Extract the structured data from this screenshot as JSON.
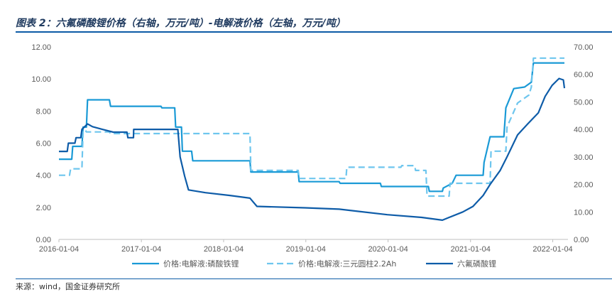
{
  "title": "图表 2：六氟磷酸锂价格（右轴，万元/吨）-电解液价格（左轴，万元/吨）",
  "source": "来源：wind，国金证券研究所",
  "chart_data": {
    "type": "line",
    "x_ticks": [
      "2016-01-04",
      "2017-01-04",
      "2018-01-04",
      "2019-01-04",
      "2020-01-04",
      "2021-01-04",
      "2022-01-04"
    ],
    "y_left": {
      "min": 0,
      "max": 12,
      "ticks": [
        "0.00",
        "2.00",
        "4.00",
        "6.00",
        "8.00",
        "10.00",
        "12.00"
      ]
    },
    "y_right": {
      "min": 0,
      "max": 70,
      "ticks": [
        "0.00",
        "10.00",
        "20.00",
        "30.00",
        "40.00",
        "50.00",
        "60.00",
        "70.00"
      ]
    },
    "grid": false,
    "legend_position": "bottom",
    "series": [
      {
        "name": "价格:电解液:磷酸铁锂",
        "axis": "left",
        "color": "#1a9ad6",
        "dash": "solid",
        "points": [
          [
            "2016-01-04",
            5.0
          ],
          [
            "2016-03-01",
            5.0
          ],
          [
            "2016-03-05",
            5.8
          ],
          [
            "2016-04-15",
            5.8
          ],
          [
            "2016-04-20",
            7.0
          ],
          [
            "2016-05-05",
            7.0
          ],
          [
            "2016-05-10",
            8.7
          ],
          [
            "2016-08-15",
            8.7
          ],
          [
            "2016-08-20",
            8.3
          ],
          [
            "2017-04-01",
            8.3
          ],
          [
            "2017-04-05",
            8.2
          ],
          [
            "2017-06-01",
            8.2
          ],
          [
            "2017-06-05",
            7.0
          ],
          [
            "2017-07-01",
            7.0
          ],
          [
            "2017-07-05",
            5.5
          ],
          [
            "2017-08-15",
            5.5
          ],
          [
            "2017-08-20",
            4.9
          ],
          [
            "2018-05-01",
            4.9
          ],
          [
            "2018-05-05",
            4.2
          ],
          [
            "2018-12-01",
            4.2
          ],
          [
            "2018-12-05",
            3.6
          ],
          [
            "2019-06-01",
            3.6
          ],
          [
            "2019-06-05",
            3.5
          ],
          [
            "2019-12-01",
            3.5
          ],
          [
            "2019-12-05",
            3.3
          ],
          [
            "2020-07-01",
            3.3
          ],
          [
            "2020-07-05",
            3.0
          ],
          [
            "2020-09-01",
            3.0
          ],
          [
            "2020-09-05",
            3.2
          ],
          [
            "2020-10-15",
            3.5
          ],
          [
            "2020-11-01",
            4.0
          ],
          [
            "2021-03-01",
            4.0
          ],
          [
            "2021-03-05",
            4.8
          ],
          [
            "2021-04-01",
            6.4
          ],
          [
            "2021-06-01",
            6.4
          ],
          [
            "2021-06-10",
            8.2
          ],
          [
            "2021-07-15",
            9.4
          ],
          [
            "2021-09-01",
            9.5
          ],
          [
            "2021-10-01",
            9.8
          ],
          [
            "2021-10-10",
            11.0
          ],
          [
            "2022-02-25",
            11.0
          ]
        ]
      },
      {
        "name": "价格:电解液:三元圆柱2.2Ah",
        "axis": "left",
        "color": "#6ec6ee",
        "dash": "dashed",
        "points": [
          [
            "2016-01-04",
            4.0
          ],
          [
            "2016-02-20",
            4.0
          ],
          [
            "2016-02-25",
            4.4
          ],
          [
            "2016-04-15",
            4.4
          ],
          [
            "2016-04-20",
            6.8
          ],
          [
            "2016-05-01",
            6.8
          ],
          [
            "2016-05-05",
            6.7
          ],
          [
            "2016-08-15",
            6.7
          ],
          [
            "2016-08-20",
            6.6
          ],
          [
            "2018-05-01",
            6.6
          ],
          [
            "2018-05-05",
            4.3
          ],
          [
            "2018-12-01",
            4.3
          ],
          [
            "2018-12-05",
            3.8
          ],
          [
            "2019-07-01",
            3.8
          ],
          [
            "2019-07-05",
            4.5
          ],
          [
            "2020-03-01",
            4.5
          ],
          [
            "2020-03-05",
            4.6
          ],
          [
            "2020-05-01",
            4.6
          ],
          [
            "2020-05-05",
            4.3
          ],
          [
            "2020-06-20",
            4.3
          ],
          [
            "2020-06-25",
            2.7
          ],
          [
            "2020-10-01",
            2.7
          ],
          [
            "2020-10-05",
            3.5
          ],
          [
            "2021-04-01",
            3.5
          ],
          [
            "2021-04-05",
            5.5
          ],
          [
            "2021-06-10",
            5.5
          ],
          [
            "2021-06-15",
            7.0
          ],
          [
            "2021-08-01",
            8.5
          ],
          [
            "2021-09-20",
            9.0
          ],
          [
            "2021-10-01",
            9.5
          ],
          [
            "2021-10-10",
            11.3
          ],
          [
            "2022-02-25",
            11.3
          ]
        ]
      },
      {
        "name": "六氟磷酸锂",
        "axis": "right",
        "color": "#0e5ca8",
        "dash": "solid",
        "points": [
          [
            "2016-01-04",
            32.0
          ],
          [
            "2016-02-10",
            32.0
          ],
          [
            "2016-02-15",
            35.0
          ],
          [
            "2016-03-15",
            35.0
          ],
          [
            "2016-03-20",
            37.0
          ],
          [
            "2016-04-10",
            37.0
          ],
          [
            "2016-04-15",
            40.0
          ],
          [
            "2016-05-10",
            42.0
          ],
          [
            "2016-06-01",
            41.0
          ],
          [
            "2016-07-15",
            40.0
          ],
          [
            "2016-09-01",
            39.0
          ],
          [
            "2016-11-01",
            39.0
          ],
          [
            "2016-11-05",
            37.0
          ],
          [
            "2016-11-30",
            37.0
          ],
          [
            "2016-12-01",
            40.0
          ],
          [
            "2017-06-15",
            40.0
          ],
          [
            "2017-06-25",
            30.0
          ],
          [
            "2017-07-15",
            23.0
          ],
          [
            "2017-08-01",
            18.0
          ],
          [
            "2017-10-15",
            17.0
          ],
          [
            "2018-02-01",
            16.0
          ],
          [
            "2018-05-01",
            15.0
          ],
          [
            "2018-06-01",
            12.0
          ],
          [
            "2019-01-01",
            11.5
          ],
          [
            "2019-06-01",
            11.0
          ],
          [
            "2020-01-01",
            9.0
          ],
          [
            "2020-06-01",
            8.0
          ],
          [
            "2020-09-01",
            7.0
          ],
          [
            "2020-10-01",
            8.0
          ],
          [
            "2020-12-01",
            10.0
          ],
          [
            "2021-01-15",
            12.0
          ],
          [
            "2021-03-01",
            16.0
          ],
          [
            "2021-04-01",
            20.0
          ],
          [
            "2021-05-15",
            25.0
          ],
          [
            "2021-06-15",
            30.0
          ],
          [
            "2021-08-01",
            38.0
          ],
          [
            "2021-09-15",
            42.0
          ],
          [
            "2021-11-01",
            46.0
          ],
          [
            "2021-12-01",
            52.0
          ],
          [
            "2022-01-01",
            56.0
          ],
          [
            "2022-02-01",
            58.5
          ],
          [
            "2022-02-20",
            58.0
          ],
          [
            "2022-02-25",
            55.0
          ]
        ]
      }
    ]
  }
}
